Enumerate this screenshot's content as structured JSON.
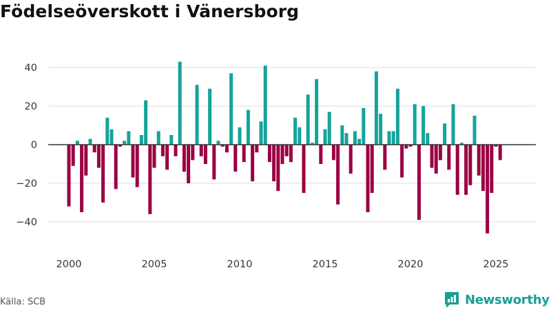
{
  "title": "Födelseöverskott i Vänersborg",
  "source": "Källa: SCB",
  "brand": {
    "name": "Newsworthy",
    "icon": "newsworthy-logo-icon"
  },
  "colors": {
    "positive": "#15a39a",
    "negative": "#9b0043",
    "grid": "#dddddd",
    "zero": "#333333"
  },
  "chart_data": {
    "type": "bar",
    "title": "Födelseöverskott i Vänersborg",
    "xlabel": "",
    "ylabel": "",
    "x_start": 2000.0,
    "x_step": 0.25,
    "xlim": [
      1999.0,
      2027.25
    ],
    "ylim": [
      -52,
      52
    ],
    "yticks": [
      -40,
      -20,
      0,
      20,
      40
    ],
    "ytick_labels": [
      "−40",
      "−20",
      "0",
      "20",
      "40"
    ],
    "xticks": [
      2000,
      2005,
      2010,
      2015,
      2020,
      2025
    ],
    "xtick_labels": [
      "2000",
      "2005",
      "2010",
      "2015",
      "2020",
      "2025"
    ],
    "grid": true,
    "legend": "none",
    "values": [
      -32,
      -11,
      2,
      -35,
      -16,
      3,
      -4,
      -12,
      -30,
      14,
      8,
      -23,
      -1,
      2,
      7,
      -17,
      -22,
      5,
      23,
      -36,
      -12,
      7,
      -6,
      -13,
      5,
      -6,
      43,
      -14,
      -20,
      -8,
      31,
      -6,
      -10,
      29,
      -18,
      2,
      -1,
      -4,
      37,
      -14,
      9,
      -9,
      18,
      -19,
      -4,
      12,
      41,
      -9,
      -19,
      -24,
      -10,
      -6,
      -9,
      14,
      9,
      -25,
      26,
      1,
      34,
      -10,
      8,
      17,
      -8,
      -31,
      10,
      6,
      -15,
      7,
      3,
      19,
      -35,
      -25,
      38,
      16,
      -13,
      7,
      7,
      29,
      -17,
      -2,
      -1,
      21,
      -39,
      20,
      6,
      -12,
      -15,
      -8,
      11,
      -13,
      21,
      -26,
      1,
      -26,
      -21,
      15,
      -16,
      -24,
      -46,
      -25,
      -1,
      -8
    ]
  }
}
